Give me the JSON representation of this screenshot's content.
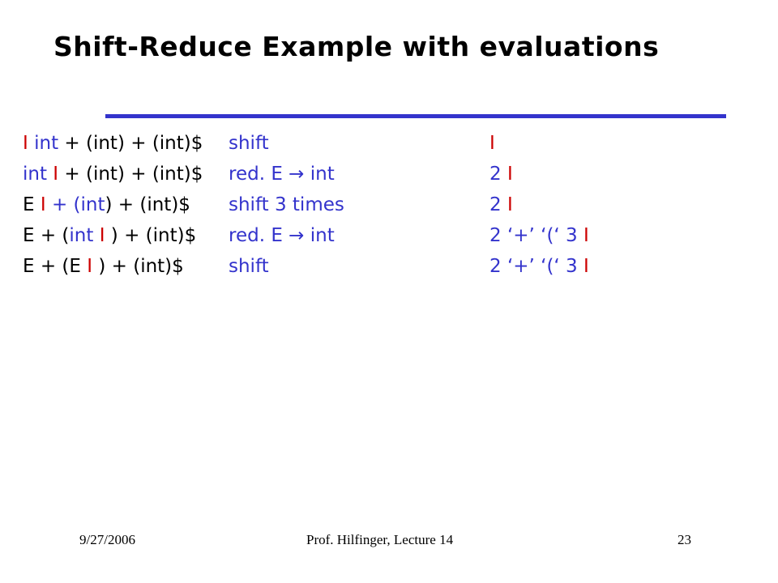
{
  "slide": {
    "title": "Shift-Reduce Example with evaluations",
    "accent_color": "#3333cc",
    "cursor_color": "#cc0000",
    "rows": [
      {
        "input": [
          {
            "text": "I",
            "color": "red"
          },
          {
            "text": " int + (int) + (int)$",
            "color": "blue-black-mix-1"
          }
        ],
        "action": "shift",
        "value": [
          {
            "text": "I",
            "color": "red"
          }
        ]
      },
      {
        "input": [
          {
            "text": "int ",
            "color": "blue"
          },
          {
            "text": "I",
            "color": "red"
          },
          {
            "text": " + (int) + (int)$",
            "color": "black"
          }
        ],
        "action": "red. E → int",
        "value": [
          {
            "text": "2 ",
            "color": "blue"
          },
          {
            "text": "I",
            "color": "red"
          }
        ]
      },
      {
        "input": [
          {
            "text": "E ",
            "color": "black"
          },
          {
            "text": "I",
            "color": "red"
          },
          {
            "text": " + (int) + (int)$",
            "color": "black"
          }
        ],
        "action": "shift 3 times",
        "value": [
          {
            "text": "2 ",
            "color": "blue"
          },
          {
            "text": "I",
            "color": "red"
          }
        ]
      },
      {
        "input": [
          {
            "text": "E + (int ",
            "color": "blue"
          },
          {
            "text": "I",
            "color": "red"
          },
          {
            "text": " ) + (int)$",
            "color": "black"
          }
        ],
        "action": "red. E → int",
        "value": [
          {
            "text": "2 ‘+’ ‘(‘ 3 ",
            "color": "blue"
          },
          {
            "text": "I",
            "color": "red"
          }
        ]
      },
      {
        "input": [
          {
            "text": "E + (E ",
            "color": "black"
          },
          {
            "text": "I",
            "color": "red"
          },
          {
            "text": " ) + (int)$",
            "color": "black"
          }
        ],
        "action": "shift",
        "value": [
          {
            "text": "2 ‘+’ ‘(‘ 3 ",
            "color": "blue"
          },
          {
            "text": "I",
            "color": "red"
          }
        ]
      }
    ]
  },
  "footer": {
    "date": "9/27/2006",
    "author": "Prof. Hilfinger, Lecture 14",
    "page": "23"
  }
}
